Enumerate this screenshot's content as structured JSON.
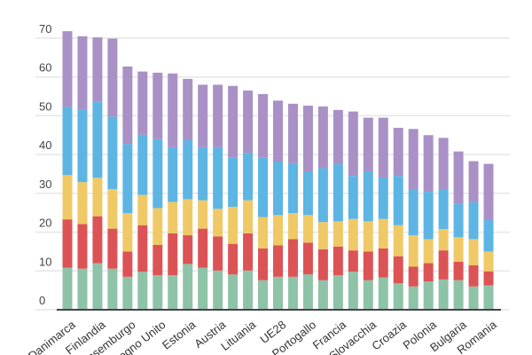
{
  "chart_data": {
    "type": "bar",
    "stacked": true,
    "title": "",
    "xlabel": "",
    "ylabel": "",
    "ylim": [
      0,
      70
    ],
    "yticks": [
      "0",
      "10",
      "20",
      "30",
      "40",
      "50",
      "60",
      "70"
    ],
    "grid": true,
    "legend": "none",
    "categories": [
      "Danimarca",
      "",
      "Finlandia",
      "",
      "Lussemburgo",
      "",
      "Regno Unito",
      "",
      "Estonia",
      "",
      "Austria",
      "",
      "Lituania",
      "",
      "UE28",
      "",
      "Portogallo",
      "",
      "Francia",
      "",
      "Slovacchia",
      "",
      "Croazia",
      "",
      "Polonia",
      "",
      "Bulgaria",
      "",
      "Romania"
    ],
    "series": [
      {
        "color": "#8ec3a7",
        "values": [
          10.8,
          10.6,
          12.0,
          10.6,
          8.5,
          9.8,
          8.9,
          8.9,
          11.8,
          10.8,
          10.1,
          9.1,
          10.1,
          7.6,
          8.5,
          8.5,
          9.1,
          7.6,
          8.9,
          9.8,
          7.6,
          8.3,
          6.8,
          6.0,
          7.3,
          7.8,
          7.6,
          6.0,
          6.3
        ]
      },
      {
        "color": "#dc5356",
        "values": [
          12.5,
          11.5,
          12.1,
          10.3,
          6.5,
          12.0,
          7.8,
          10.8,
          7.4,
          10.1,
          8.8,
          7.9,
          9.6,
          8.2,
          8.1,
          9.7,
          8.2,
          8.0,
          7.4,
          5.5,
          7.4,
          7.5,
          7.0,
          5.1,
          4.7,
          7.5,
          4.8,
          5.5,
          3.6
        ]
      },
      {
        "color": "#f0c967",
        "values": [
          11.4,
          10.8,
          9.9,
          10.2,
          9.9,
          7.8,
          9.5,
          8.1,
          9.3,
          7.3,
          7.1,
          9.5,
          8.5,
          8.1,
          7.8,
          6.7,
          7.1,
          7.0,
          6.5,
          8.1,
          7.8,
          7.6,
          8.0,
          8.1,
          6.2,
          5.5,
          6.3,
          6.7,
          5.1
        ]
      },
      {
        "color": "#5db5e3",
        "values": [
          17.6,
          18.6,
          19.6,
          18.7,
          17.8,
          15.5,
          17.8,
          14.1,
          15.2,
          13.7,
          15.9,
          12.8,
          12.2,
          15.4,
          13.8,
          12.9,
          11.3,
          13.9,
          14.7,
          11.1,
          12.9,
          10.7,
          12.7,
          11.9,
          12.2,
          10.3,
          8.6,
          9.5,
          8.1
        ]
      },
      {
        "color": "#a991c6",
        "values": [
          19.5,
          19.0,
          16.6,
          20.1,
          20.0,
          16.3,
          17.1,
          19.0,
          15.8,
          16.1,
          16.1,
          18.4,
          16.1,
          16.3,
          15.7,
          15.3,
          16.9,
          15.9,
          14.0,
          16.6,
          13.8,
          15.4,
          12.4,
          15.5,
          14.6,
          13.2,
          13.5,
          10.6,
          14.5
        ]
      }
    ]
  }
}
